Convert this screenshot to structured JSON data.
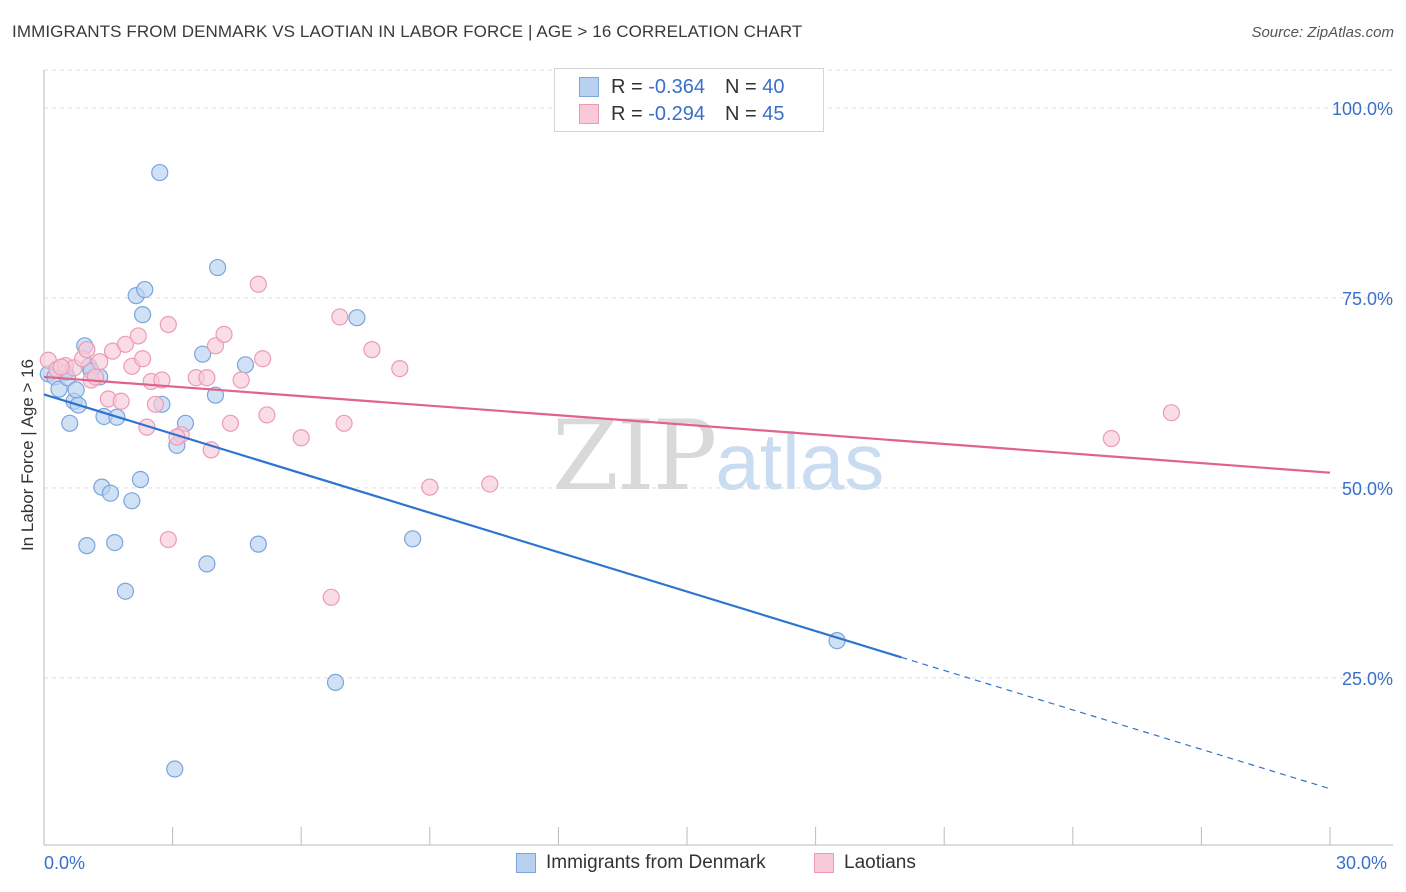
{
  "title": "IMMIGRANTS FROM DENMARK VS LAOTIAN IN LABOR FORCE | AGE > 16 CORRELATION CHART",
  "source": "Source: ZipAtlas.com",
  "watermark": {
    "zip": "ZIP",
    "atlas": "atlas"
  },
  "legend_top": [
    {
      "r_label": "R = ",
      "r_value": "-0.364",
      "n_label": "N = ",
      "n_value": "40"
    },
    {
      "r_label": "R = ",
      "r_value": "-0.294",
      "n_label": "N = ",
      "n_value": "45"
    }
  ],
  "legend_bottom": [
    "Immigrants from Denmark",
    "Laotians"
  ],
  "colors": {
    "denmark_fill": "#b9d1f0",
    "denmark_stroke": "#7aa5dd",
    "denmark_line": "#2e74d0",
    "laotian_fill": "#f8c9d8",
    "laotian_stroke": "#ec9bb6",
    "laotian_line": "#e0628d",
    "grid": "#dddddd",
    "tick_label": "#3a6fc9"
  },
  "chart_data": {
    "type": "scatter",
    "title": "IMMIGRANTS FROM DENMARK VS LAOTIAN IN LABOR FORCE | AGE > 16 CORRELATION CHART",
    "xlabel": "",
    "ylabel": "In Labor Force | Age > 16",
    "xlim": [
      0,
      30
    ],
    "ylim": [
      3,
      105
    ],
    "x_tick_labels": [
      "0.0%",
      "30.0%"
    ],
    "y_ticks": [
      25,
      50,
      75,
      100
    ],
    "y_tick_labels": [
      "25.0%",
      "50.0%",
      "75.0%",
      "100.0%"
    ],
    "grid": "horizontal dashed",
    "legend": "top-center",
    "series": [
      {
        "name": "Immigrants from Denmark",
        "r": -0.364,
        "n": 40,
        "trend": {
          "x0": 0.0,
          "y0": 62.3,
          "x1": 20.0,
          "y1": 27.7,
          "dashed_to_x": 30.0,
          "dashed_to_y": 10.4
        },
        "points": [
          [
            0.1,
            65.0
          ],
          [
            0.25,
            64.6
          ],
          [
            0.35,
            63.0
          ],
          [
            0.5,
            65.2
          ],
          [
            0.6,
            58.5
          ],
          [
            0.7,
            61.4
          ],
          [
            0.8,
            60.9
          ],
          [
            0.95,
            68.7
          ],
          [
            1.05,
            66.0
          ],
          [
            1.3,
            64.6
          ],
          [
            1.4,
            59.4
          ],
          [
            1.7,
            59.3
          ],
          [
            2.15,
            75.3
          ],
          [
            2.35,
            76.1
          ],
          [
            2.3,
            72.8
          ],
          [
            2.7,
            91.5
          ],
          [
            2.75,
            61.0
          ],
          [
            3.1,
            55.6
          ],
          [
            3.3,
            58.5
          ],
          [
            3.7,
            67.6
          ],
          [
            4.0,
            62.2
          ],
          [
            4.05,
            79.0
          ],
          [
            4.7,
            66.2
          ],
          [
            7.3,
            72.4
          ],
          [
            1.35,
            50.1
          ],
          [
            1.55,
            49.3
          ],
          [
            2.05,
            48.3
          ],
          [
            2.25,
            51.1
          ],
          [
            1.0,
            42.4
          ],
          [
            1.65,
            42.8
          ],
          [
            1.9,
            36.4
          ],
          [
            3.8,
            40.0
          ],
          [
            5.0,
            42.6
          ],
          [
            6.8,
            24.4
          ],
          [
            3.05,
            13.0
          ],
          [
            8.6,
            43.3
          ],
          [
            18.5,
            29.9
          ],
          [
            0.55,
            64.5
          ],
          [
            0.75,
            62.9
          ],
          [
            1.1,
            65.4
          ]
        ]
      },
      {
        "name": "Laotians",
        "r": -0.294,
        "n": 45,
        "trend": {
          "x0": 0.0,
          "y0": 64.6,
          "x1": 30.0,
          "y1": 52.0
        },
        "points": [
          [
            0.1,
            66.8
          ],
          [
            0.3,
            65.6
          ],
          [
            0.5,
            66.1
          ],
          [
            0.7,
            65.8
          ],
          [
            0.9,
            67.0
          ],
          [
            1.1,
            64.2
          ],
          [
            1.0,
            68.2
          ],
          [
            1.3,
            66.6
          ],
          [
            1.5,
            61.7
          ],
          [
            1.6,
            68.0
          ],
          [
            1.9,
            68.9
          ],
          [
            2.05,
            66.0
          ],
          [
            2.2,
            70.0
          ],
          [
            2.3,
            67.0
          ],
          [
            2.5,
            64.0
          ],
          [
            2.6,
            61.0
          ],
          [
            2.75,
            64.2
          ],
          [
            2.9,
            71.5
          ],
          [
            3.2,
            57.0
          ],
          [
            3.55,
            64.5
          ],
          [
            3.8,
            64.5
          ],
          [
            3.9,
            55.0
          ],
          [
            4.0,
            68.7
          ],
          [
            4.2,
            70.2
          ],
          [
            4.35,
            58.5
          ],
          [
            4.6,
            64.2
          ],
          [
            5.0,
            76.8
          ],
          [
            5.1,
            67.0
          ],
          [
            5.2,
            59.6
          ],
          [
            6.0,
            56.6
          ],
          [
            6.9,
            72.5
          ],
          [
            7.0,
            58.5
          ],
          [
            7.65,
            68.2
          ],
          [
            8.3,
            65.7
          ],
          [
            9.0,
            50.1
          ],
          [
            10.4,
            50.5
          ],
          [
            2.9,
            43.2
          ],
          [
            6.7,
            35.6
          ],
          [
            24.9,
            56.5
          ],
          [
            26.3,
            59.9
          ],
          [
            1.8,
            61.4
          ],
          [
            2.4,
            58.0
          ],
          [
            3.1,
            56.7
          ],
          [
            0.4,
            65.9
          ],
          [
            1.2,
            64.6
          ]
        ]
      }
    ]
  }
}
